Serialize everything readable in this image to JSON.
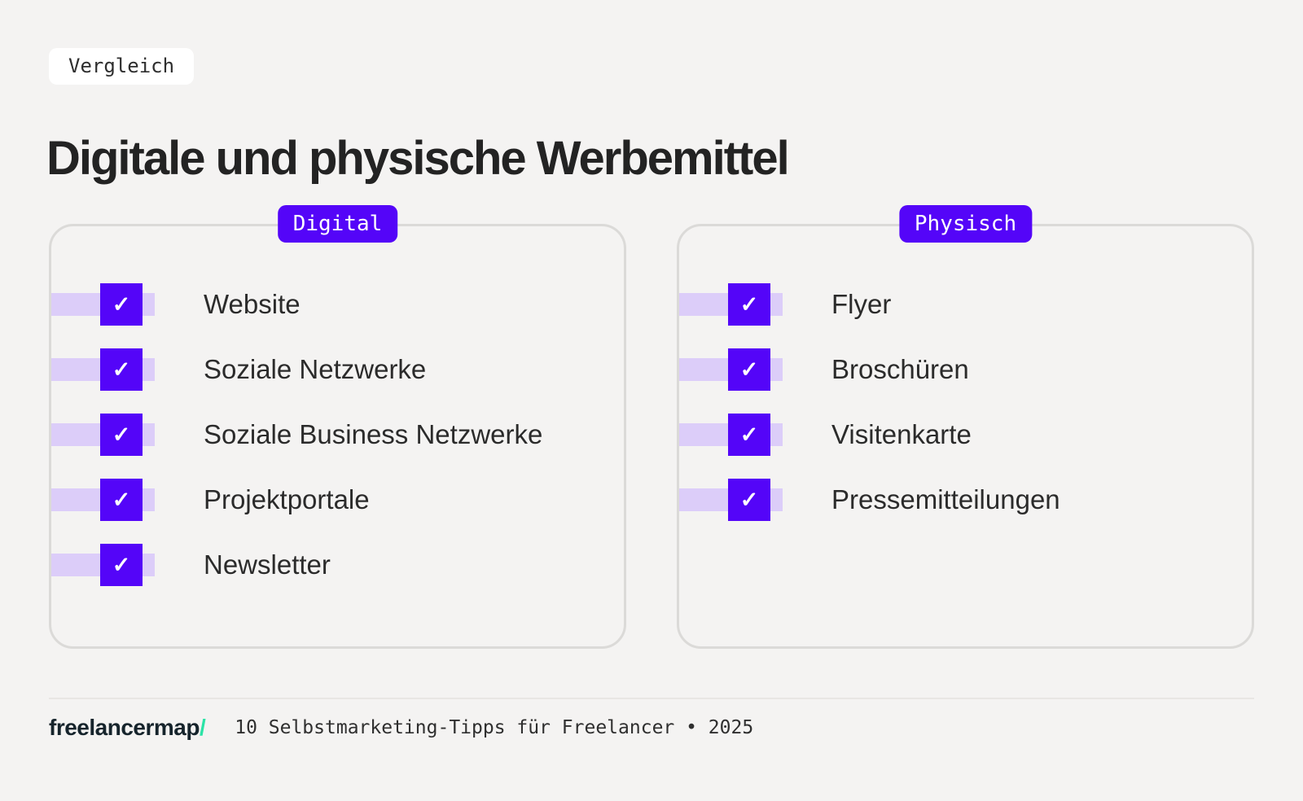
{
  "page": {
    "background_color": "#f4f3f2",
    "accent_color": "#5405f8",
    "accent_light_color": "#dccdf9",
    "card_border_color": "#dbdad8"
  },
  "header": {
    "tag": "Vergleich",
    "title": "Digitale und physische Werbemittel"
  },
  "checkmark": "✓",
  "cards": [
    {
      "label": "Digital",
      "items": [
        "Website",
        "Soziale Netzwerke",
        "Soziale Business Netzwerke",
        "Projektportale",
        "Newsletter"
      ]
    },
    {
      "label": "Physisch",
      "items": [
        "Flyer",
        "Broschüren",
        "Visitenkarte",
        "Pressemitteilungen"
      ]
    }
  ],
  "footer": {
    "logo_text": "freelancermap",
    "logo_slash": "/",
    "logo_slash_color": "#2be3a6",
    "caption": "10 Selbstmarketing-Tipps für Freelancer • 2025"
  }
}
